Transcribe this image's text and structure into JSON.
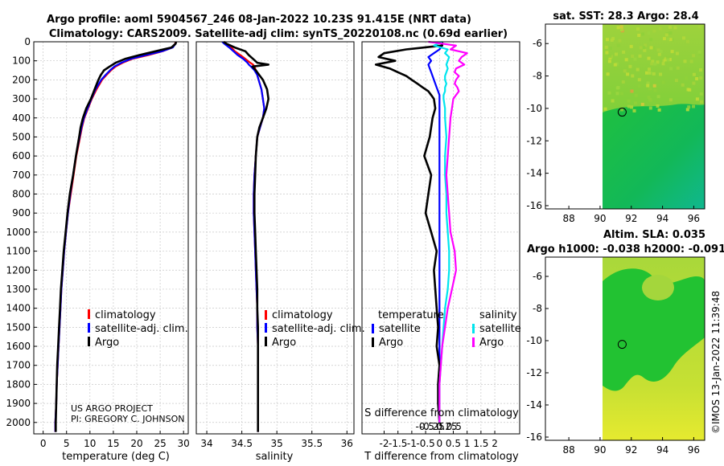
{
  "titles": {
    "line1": "Argo profile: aoml 5904567_246 08-Jan-2022 10.23S 91.415E (NRT data)",
    "line2": "Climatology: CARS2009. Satellite-adj clim: synTS_20220108.nc (0.69d earlier)"
  },
  "credits": {
    "line1": "US ARGO PROJECT",
    "line2": "PI: GREGORY C. JOHNSON"
  },
  "watermark": "©IMOS 13-Jan-2022 11:39:48",
  "colors": {
    "climatology": "#ff0000",
    "satellite": "#0000ff",
    "argo": "#000000",
    "sal_satellite": "#00e5ee",
    "sal_argo": "#ff00ff"
  },
  "chart_data": [
    {
      "type": "line",
      "id": "temperature",
      "xlabel": "temperature (deg C)",
      "ylabel": "",
      "xlim": [
        -2,
        31
      ],
      "ylim": [
        2060,
        0
      ],
      "xticks": [
        "0",
        "5",
        "10",
        "15",
        "20",
        "25",
        "30"
      ],
      "yticks": [
        "0",
        "100",
        "200",
        "300",
        "400",
        "500",
        "600",
        "700",
        "800",
        "900",
        "1000",
        "1100",
        "1200",
        "1300",
        "1400",
        "1500",
        "1600",
        "1700",
        "1800",
        "1900",
        "2000"
      ],
      "legend": [
        "climatology",
        "satellite-adj. clim.",
        "Argo"
      ],
      "depth": [
        0,
        10,
        30,
        50,
        70,
        90,
        110,
        130,
        150,
        175,
        200,
        250,
        300,
        350,
        400,
        450,
        500,
        600,
        700,
        800,
        900,
        1000,
        1100,
        1200,
        1300,
        1400,
        1500,
        1600,
        1700,
        1800,
        1900,
        2000,
        2050
      ],
      "series": [
        {
          "name": "climatology",
          "color": "#ff0000",
          "values": [
            28.3,
            28.2,
            27.6,
            25.5,
            22.5,
            19,
            17,
            15.5,
            14.5,
            13.5,
            12.6,
            11.4,
            10.4,
            9.6,
            8.8,
            8.3,
            7.9,
            7.1,
            6.5,
            5.9,
            5.3,
            4.9,
            4.5,
            4.2,
            3.9,
            3.7,
            3.5,
            3.3,
            3.1,
            2.9,
            2.8,
            2.6,
            2.6
          ]
        },
        {
          "name": "satellite-adj. clim.",
          "color": "#0000ff",
          "values": [
            28.4,
            28.3,
            27.7,
            25.4,
            22,
            18.7,
            16.7,
            15.2,
            14.3,
            13.3,
            12.4,
            11.2,
            10.3,
            9.5,
            8.7,
            8.2,
            7.8,
            7,
            6.4,
            5.8,
            5.3,
            4.9,
            4.5,
            4.2,
            3.9,
            3.7,
            3.5,
            3.3,
            3.1,
            2.9,
            2.8,
            2.6,
            2.6
          ]
        },
        {
          "name": "Argo",
          "color": "#000000",
          "values": [
            28.4,
            28.3,
            27.4,
            24,
            20.5,
            17.5,
            15.5,
            14.2,
            13,
            12.3,
            11.8,
            11,
            10.2,
            9.2,
            8.5,
            8,
            7.7,
            7,
            6.4,
            5.7,
            5.2,
            4.8,
            4.4,
            4.1,
            3.8,
            3.6,
            3.4,
            3.2,
            3,
            2.9,
            2.8,
            2.7,
            2.7
          ]
        }
      ]
    },
    {
      "type": "line",
      "id": "salinity",
      "xlabel": "salinity",
      "xlim": [
        33.85,
        36.1
      ],
      "ylim": [
        2060,
        0
      ],
      "xticks": [
        "34",
        "34.5",
        "35",
        "35.5",
        "36"
      ],
      "legend": [
        "climatology",
        "satellite-adj. clim.",
        "Argo"
      ],
      "depth": [
        0,
        10,
        30,
        50,
        70,
        90,
        110,
        120,
        130,
        150,
        175,
        200,
        250,
        300,
        350,
        400,
        450,
        500,
        600,
        700,
        800,
        900,
        1000,
        1100,
        1200,
        1300,
        1400,
        1500,
        1600,
        1700,
        1800,
        1900,
        2000,
        2050
      ],
      "series": [
        {
          "name": "climatology",
          "color": "#ff0000",
          "values": [
            34.25,
            34.28,
            34.35,
            34.4,
            34.48,
            34.55,
            34.62,
            34.66,
            34.68,
            34.7,
            34.72,
            34.74,
            34.78,
            34.8,
            34.82,
            34.8,
            34.76,
            34.72,
            34.7,
            34.68,
            34.67,
            34.67,
            34.68,
            34.69,
            34.7,
            34.71,
            34.72,
            34.72,
            34.73,
            34.73,
            34.73,
            34.73,
            34.73,
            34.73
          ]
        },
        {
          "name": "satellite-adj. clim.",
          "color": "#0000ff",
          "values": [
            34.22,
            34.25,
            34.32,
            34.38,
            34.44,
            34.52,
            34.58,
            34.6,
            34.63,
            34.68,
            34.72,
            34.74,
            34.78,
            34.8,
            34.82,
            34.8,
            34.76,
            34.72,
            34.7,
            34.68,
            34.67,
            34.67,
            34.68,
            34.69,
            34.7,
            34.71,
            34.72,
            34.72,
            34.73,
            34.73,
            34.73,
            34.73,
            34.73,
            34.73
          ]
        },
        {
          "name": "Argo",
          "color": "#000000",
          "values": [
            34.24,
            34.28,
            34.4,
            34.55,
            34.6,
            34.66,
            34.72,
            34.88,
            34.65,
            34.7,
            34.75,
            34.8,
            34.86,
            34.88,
            34.85,
            34.8,
            34.75,
            34.72,
            34.7,
            34.69,
            34.68,
            34.68,
            34.69,
            34.7,
            34.71,
            34.72,
            34.72,
            34.73,
            34.73,
            34.73,
            34.73,
            34.73,
            34.73,
            34.73
          ]
        }
      ]
    },
    {
      "type": "line",
      "id": "differences",
      "xlabel": "T difference from climatology",
      "xlabel2": "S difference from climatology",
      "xlim": [
        -2.8,
        2.9
      ],
      "ylim": [
        2060,
        0
      ],
      "xticks": [
        "-2",
        "-1.5",
        "-1",
        "-0.5",
        "0",
        "0.5",
        "1",
        "1.5",
        "2"
      ],
      "xticks_s": [
        "-0.5",
        "-0.25",
        "0",
        "0.25",
        "0.5"
      ],
      "legend_left_title": "temperature",
      "legend_right_title": "salinity",
      "legend_left": [
        "satellite",
        "Argo"
      ],
      "legend_right": [
        "satellite",
        "Argo"
      ],
      "depth": [
        0,
        20,
        40,
        60,
        80,
        100,
        120,
        140,
        160,
        180,
        200,
        220,
        240,
        260,
        280,
        300,
        350,
        400,
        500,
        600,
        700,
        800,
        900,
        1000,
        1100,
        1200,
        1300,
        1400,
        1500,
        1600,
        1700,
        1800,
        1900,
        2000
      ],
      "series": [
        {
          "name": "temperature satellite",
          "color": "#0000ff",
          "values": [
            0.05,
            0.1,
            0.0,
            -0.2,
            -0.4,
            -0.3,
            -0.4,
            -0.35,
            -0.3,
            -0.25,
            -0.2,
            -0.15,
            -0.1,
            -0.05,
            0,
            0,
            0,
            0,
            0,
            0,
            0,
            0,
            0,
            0,
            0,
            0,
            0,
            0,
            0,
            0,
            0,
            0,
            0,
            0
          ]
        },
        {
          "name": "temperature Argo",
          "color": "#000000",
          "values": [
            0.1,
            0.1,
            -1.2,
            -2.0,
            -2.2,
            -1.6,
            -2.3,
            -1.8,
            -1.5,
            -1.2,
            -1.0,
            -0.8,
            -0.6,
            -0.4,
            -0.3,
            -0.2,
            -0.15,
            -0.25,
            -0.35,
            -0.55,
            -0.3,
            -0.4,
            -0.5,
            -0.3,
            -0.1,
            -0.2,
            -0.15,
            -0.1,
            -0.05,
            -0.1,
            0.0,
            -0.05,
            -0.05,
            0.0
          ]
        },
        {
          "name": "salinity satellite",
          "color": "#00e5ee",
          "values": [
            0.1,
            -0.2,
            0.3,
            0.2,
            0.35,
            0.3,
            0.25,
            0.3,
            0.25,
            0.2,
            0.2,
            0.25,
            0.2,
            0.2,
            0.15,
            0.15,
            0.2,
            0.2,
            0.25,
            0.2,
            0.2,
            0.25,
            0.25,
            0.3,
            0.35,
            0.35,
            0.3,
            0.2,
            0.15,
            0.1,
            0.05,
            0.0,
            0.0,
            0.0
          ]
        },
        {
          "name": "salinity Argo",
          "color": "#ff00ff",
          "values": [
            -0.4,
            0.6,
            0.4,
            1.0,
            0.8,
            0.7,
            0.9,
            0.6,
            0.55,
            0.7,
            0.6,
            0.55,
            0.65,
            0.7,
            0.6,
            0.5,
            0.45,
            0.4,
            0.35,
            0.3,
            0.25,
            0.3,
            0.35,
            0.4,
            0.55,
            0.6,
            0.45,
            0.3,
            0.2,
            0.1,
            0.05,
            0.0,
            0.0,
            0.0
          ]
        }
      ]
    },
    {
      "type": "heatmap",
      "id": "sst-map",
      "title": "sat. SST: 28.3 Argo: 28.4",
      "xlim": [
        86.5,
        96.7
      ],
      "ylim": [
        -16.2,
        -4.8
      ],
      "xticks": [
        "88",
        "90",
        "92",
        "94",
        "96"
      ],
      "yticks": [
        "-6",
        "-8",
        "-10",
        "-12",
        "-14",
        "-16"
      ],
      "data_west_limit": 90,
      "marker": {
        "lon": 91.415,
        "lat": -10.23
      }
    },
    {
      "type": "heatmap",
      "id": "sla-map",
      "title": "Altim. SLA: 0.035",
      "title2": "Argo h1000: -0.038 h2000: -0.091",
      "xlim": [
        86.5,
        96.7
      ],
      "ylim": [
        -16.2,
        -4.8
      ],
      "xticks": [
        "88",
        "90",
        "92",
        "94",
        "96"
      ],
      "yticks": [
        "-6",
        "-8",
        "-10",
        "-12",
        "-14",
        "-16"
      ],
      "data_west_limit": 90,
      "marker": {
        "lon": 91.415,
        "lat": -10.23
      }
    }
  ]
}
